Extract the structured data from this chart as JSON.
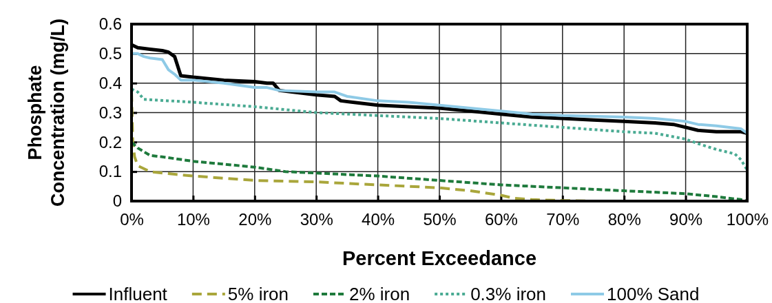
{
  "chart_data": {
    "type": "line",
    "xlabel": "Percent Exceedance",
    "ylabel": "Phosphate Concentration (mg/L)",
    "xlim": [
      0,
      100
    ],
    "xticks": [
      {
        "value": 0,
        "label": "0%"
      },
      {
        "value": 10,
        "label": "10%"
      },
      {
        "value": 20,
        "label": "20%"
      },
      {
        "value": 30,
        "label": "30%"
      },
      {
        "value": 40,
        "label": "40%"
      },
      {
        "value": 50,
        "label": "50%"
      },
      {
        "value": 60,
        "label": "60%"
      },
      {
        "value": 70,
        "label": "70%"
      },
      {
        "value": 80,
        "label": "80%"
      },
      {
        "value": 90,
        "label": "90%"
      },
      {
        "value": 100,
        "label": "100%"
      }
    ],
    "ylim": [
      0,
      0.6
    ],
    "yticks": [
      0,
      0.1,
      0.2,
      0.3,
      0.4,
      0.5,
      0.6
    ],
    "grid": true,
    "legend": "bottom",
    "marker": "none",
    "series": [
      {
        "name": "Influent",
        "color": "#000000",
        "line_style": "solid",
        "x": [
          0,
          1,
          3,
          5,
          6,
          7,
          8,
          10,
          15,
          20,
          22,
          23,
          24,
          30,
          33,
          34,
          40,
          45,
          50,
          55,
          60,
          65,
          70,
          75,
          80,
          85,
          88,
          90,
          92,
          95,
          99,
          100
        ],
        "values": [
          0.53,
          0.52,
          0.515,
          0.51,
          0.505,
          0.49,
          0.425,
          0.42,
          0.41,
          0.405,
          0.4,
          0.4,
          0.375,
          0.36,
          0.355,
          0.34,
          0.325,
          0.32,
          0.315,
          0.305,
          0.295,
          0.285,
          0.28,
          0.275,
          0.27,
          0.265,
          0.26,
          0.25,
          0.24,
          0.235,
          0.235,
          0.23
        ]
      },
      {
        "name": "5% iron",
        "color": "#a9a63b",
        "line_style": "dashed",
        "x": [
          0,
          0.2,
          0.5,
          1,
          3,
          5,
          10,
          20,
          30,
          40,
          50,
          55,
          60,
          62,
          65,
          70,
          75,
          100
        ],
        "values": [
          0.37,
          0.2,
          0.15,
          0.12,
          0.1,
          0.095,
          0.085,
          0.07,
          0.065,
          0.055,
          0.045,
          0.035,
          0.02,
          0.01,
          0.005,
          0.002,
          0,
          0
        ]
      },
      {
        "name": "2% iron",
        "color": "#1e7a3c",
        "line_style": "dashed",
        "x": [
          0,
          1,
          3,
          5,
          10,
          15,
          20,
          25,
          30,
          40,
          50,
          60,
          70,
          80,
          90,
          95,
          99,
          100
        ],
        "values": [
          0.2,
          0.18,
          0.155,
          0.15,
          0.135,
          0.125,
          0.115,
          0.1,
          0.095,
          0.085,
          0.07,
          0.055,
          0.045,
          0.035,
          0.025,
          0.015,
          0.005,
          0
        ]
      },
      {
        "name": "0.3% iron",
        "color": "#4aab93",
        "line_style": "dotted",
        "x": [
          0,
          1,
          2,
          10,
          20,
          30,
          40,
          50,
          60,
          70,
          80,
          85,
          90,
          92,
          95,
          98,
          99,
          100
        ],
        "values": [
          0.38,
          0.37,
          0.345,
          0.335,
          0.32,
          0.3,
          0.29,
          0.28,
          0.265,
          0.25,
          0.235,
          0.23,
          0.21,
          0.195,
          0.175,
          0.16,
          0.14,
          0.105
        ]
      },
      {
        "name": "100% Sand",
        "color": "#8ecae6",
        "line_style": "solid",
        "x": [
          0,
          1,
          2,
          3,
          5,
          6,
          7,
          8,
          10,
          15,
          20,
          22,
          24,
          30,
          33,
          35,
          40,
          45,
          50,
          55,
          60,
          65,
          70,
          80,
          85,
          90,
          92,
          95,
          99,
          100
        ],
        "values": [
          0.5,
          0.5,
          0.49,
          0.485,
          0.48,
          0.445,
          0.43,
          0.41,
          0.41,
          0.4,
          0.385,
          0.385,
          0.375,
          0.37,
          0.37,
          0.355,
          0.34,
          0.335,
          0.325,
          0.315,
          0.305,
          0.295,
          0.29,
          0.285,
          0.28,
          0.27,
          0.26,
          0.255,
          0.245,
          0.23
        ]
      }
    ]
  }
}
